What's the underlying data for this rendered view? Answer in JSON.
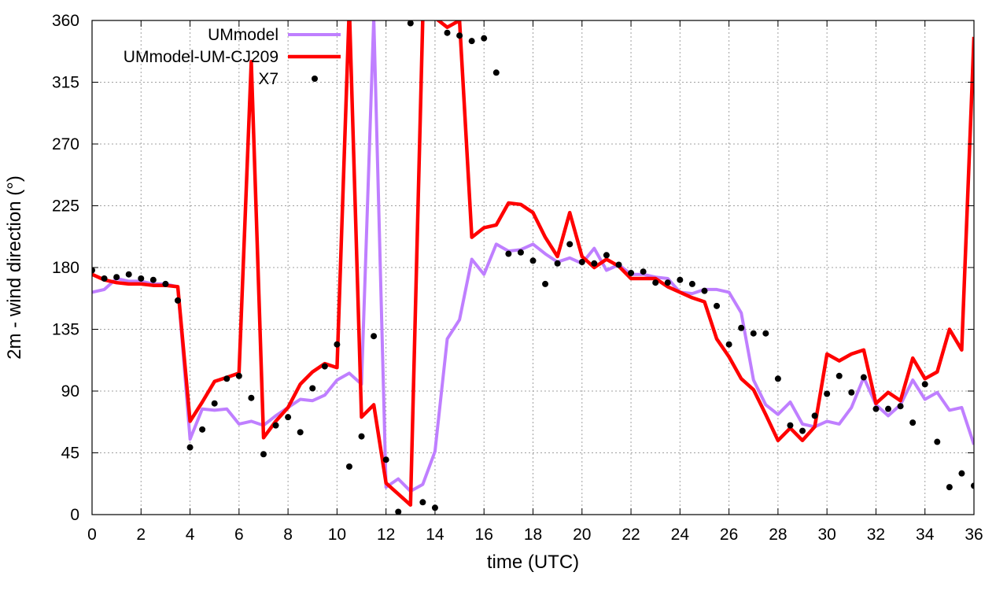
{
  "chart_data": {
    "type": "line",
    "title": "",
    "xlabel": "time (UTC)",
    "ylabel": "2m - wind direction (°)",
    "xlim": [
      0,
      36
    ],
    "ylim": [
      0,
      360
    ],
    "xticks": [
      0,
      2,
      4,
      6,
      8,
      10,
      12,
      14,
      16,
      18,
      20,
      22,
      24,
      26,
      28,
      30,
      32,
      34,
      36
    ],
    "yticks": [
      0,
      45,
      90,
      135,
      180,
      225,
      270,
      315,
      360
    ],
    "grid": true,
    "legend_position": "top-left",
    "series": [
      {
        "name": "UMmodel",
        "style": "line",
        "color": "#bf7fff",
        "x": [
          0,
          0.5,
          1,
          1.5,
          2,
          2.5,
          3,
          3.5,
          4,
          4.5,
          5,
          5.5,
          6,
          6.5,
          7,
          7.5,
          8,
          8.5,
          9,
          9.5,
          10,
          10.5,
          11,
          11.5,
          12,
          12.5,
          13,
          13.5,
          14,
          14.5,
          15,
          15.5,
          16,
          16.5,
          17,
          17.5,
          18,
          18.5,
          19,
          19.5,
          20,
          20.5,
          21,
          21.5,
          22,
          22.5,
          23,
          23.5,
          24,
          24.5,
          25,
          25.5,
          26,
          26.5,
          27,
          27.5,
          28,
          28.5,
          29,
          29.5,
          30,
          30.5,
          31,
          31.5,
          32,
          32.5,
          33,
          33.5,
          34,
          34.5,
          35,
          35.5,
          36
        ],
        "values": [
          162,
          164,
          172,
          170,
          170,
          168,
          168,
          166,
          55,
          77,
          76,
          77,
          66,
          68,
          65,
          72,
          78,
          84,
          83,
          87,
          98,
          103,
          95,
          362,
          20,
          26,
          17,
          22,
          46,
          128,
          142,
          186,
          175,
          197,
          192,
          193,
          197,
          190,
          184,
          187,
          183,
          194,
          178,
          182,
          175,
          175,
          173,
          172,
          162,
          161,
          164,
          164,
          162,
          147,
          98,
          80,
          73,
          82,
          66,
          64,
          68,
          66,
          78,
          100,
          80,
          72,
          80,
          98,
          84,
          89,
          76,
          78,
          51
        ]
      },
      {
        "name": "UMmodel-UM-CJ209",
        "style": "line",
        "color": "#ff0000",
        "x": [
          0,
          0.5,
          1,
          1.5,
          2,
          2.5,
          3,
          3.5,
          4,
          4.5,
          5,
          5.5,
          6,
          6.5,
          7,
          7.5,
          8,
          8.5,
          9,
          9.5,
          10,
          10.5,
          11,
          11.5,
          12,
          12.5,
          13,
          13.5,
          14,
          14.5,
          15,
          15.5,
          16,
          16.5,
          17,
          17.5,
          18,
          18.5,
          19,
          19.5,
          20,
          20.5,
          21,
          21.5,
          22,
          22.5,
          23,
          23.5,
          24,
          24.5,
          25,
          25.5,
          26,
          26.5,
          27,
          27.5,
          28,
          28.5,
          29,
          29.5,
          30,
          30.5,
          31,
          31.5,
          32,
          32.5,
          33,
          33.5,
          34,
          34.5,
          35,
          35.5,
          36
        ],
        "values": [
          175,
          171,
          169,
          168,
          168,
          167,
          167,
          166,
          68,
          82,
          97,
          100,
          103,
          330,
          56,
          68,
          78,
          95,
          104,
          110,
          107,
          370,
          71,
          80,
          23,
          15,
          7,
          362,
          362,
          355,
          360,
          202,
          209,
          211,
          227,
          226,
          220,
          202,
          188,
          220,
          188,
          180,
          186,
          181,
          172,
          172,
          172,
          166,
          162,
          158,
          155,
          128,
          115,
          99,
          91,
          73,
          54,
          63,
          54,
          64,
          117,
          112,
          117,
          120,
          81,
          89,
          83,
          114,
          99,
          104,
          135,
          120,
          348
        ]
      },
      {
        "name": "X7",
        "style": "points",
        "color": "#000000",
        "x": [
          0,
          0.5,
          1,
          1.5,
          2,
          2.5,
          3,
          3.5,
          4,
          4.5,
          5,
          5.5,
          6,
          6.5,
          7,
          7.5,
          8,
          8.5,
          9,
          9.5,
          10,
          10.5,
          11,
          11.5,
          12,
          12.5,
          13,
          13.5,
          14,
          14.5,
          15,
          15.5,
          16,
          16.5,
          17,
          17.5,
          18,
          18.5,
          19,
          19.5,
          20,
          20.5,
          21,
          21.5,
          22,
          22.5,
          23,
          23.5,
          24,
          24.5,
          25,
          25.5,
          26,
          26.5,
          27,
          27.5,
          28,
          28.5,
          29,
          29.5,
          30,
          30.5,
          31,
          31.5,
          32,
          32.5,
          33,
          33.5,
          34,
          34.5,
          35,
          35.5,
          36
        ],
        "values": [
          178,
          172,
          173,
          175,
          172,
          171,
          168,
          156,
          49,
          62,
          81,
          99,
          101,
          85,
          44,
          65,
          71,
          60,
          92,
          108,
          124,
          35,
          57,
          130,
          40,
          2,
          358,
          9,
          5,
          351,
          349,
          345,
          347,
          322,
          190,
          191,
          185,
          168,
          183,
          197,
          184,
          183,
          189,
          182,
          176,
          177,
          169,
          169,
          171,
          168,
          163,
          152,
          124,
          136,
          132,
          132,
          99,
          65,
          61,
          72,
          88,
          101,
          89,
          100,
          77,
          77,
          79,
          67,
          95,
          53,
          20,
          30,
          21
        ]
      }
    ]
  }
}
